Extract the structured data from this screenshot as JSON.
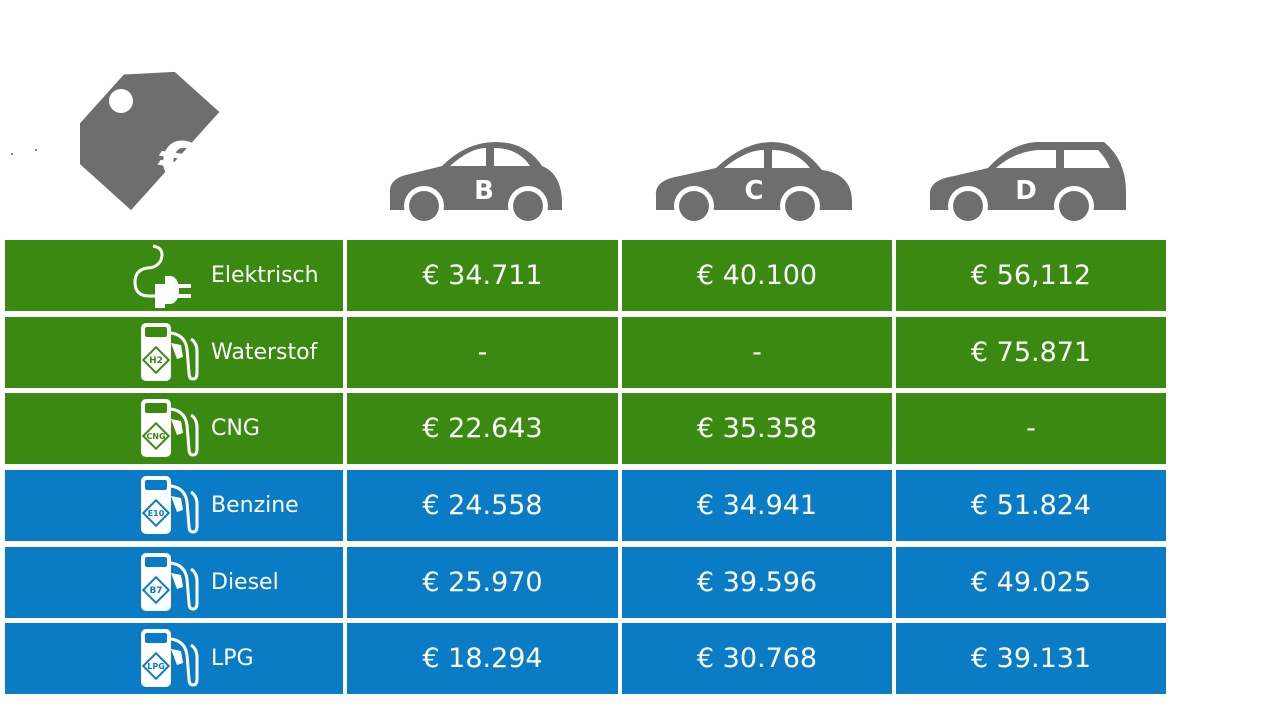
{
  "colors": {
    "electric_green": "#3a8a12",
    "fossil_blue": "#0a7cc6",
    "icon_gray": "#6e6e6e"
  },
  "price_icon": {
    "symbol": "€",
    "icon": "price-tag-icon"
  },
  "columns": [
    {
      "label": "B",
      "icon": "hatchback-car-icon"
    },
    {
      "label": "C",
      "icon": "sedan-car-icon"
    },
    {
      "label": "D",
      "icon": "station-wagon-car-icon"
    }
  ],
  "rows": [
    {
      "fuel": "Elektrisch",
      "badge": "",
      "icon": "electric-plug-icon",
      "color": "green",
      "prices": [
        "€ 34.711",
        "€ 40.100",
        "€ 56,112"
      ]
    },
    {
      "fuel": "Waterstof",
      "badge": "H2",
      "icon": "fuel-pump-icon",
      "color": "green",
      "prices": [
        "-",
        "-",
        "€ 75.871"
      ]
    },
    {
      "fuel": "CNG",
      "badge": "CNG",
      "icon": "fuel-pump-icon",
      "color": "green",
      "prices": [
        "€ 22.643",
        "€ 35.358",
        "-"
      ]
    },
    {
      "fuel": "Benzine",
      "badge": "E10",
      "icon": "fuel-pump-icon",
      "color": "blue",
      "prices": [
        "€ 24.558",
        "€ 34.941",
        "€ 51.824"
      ]
    },
    {
      "fuel": "Diesel",
      "badge": "B7",
      "icon": "fuel-pump-icon",
      "color": "blue",
      "prices": [
        "€ 25.970",
        "€ 39.596",
        "€ 49.025"
      ]
    },
    {
      "fuel": "LPG",
      "badge": "LPG",
      "icon": "fuel-pump-icon",
      "color": "blue",
      "prices": [
        "€ 18.294",
        "€ 30.768",
        "€ 39.131"
      ]
    }
  ]
}
